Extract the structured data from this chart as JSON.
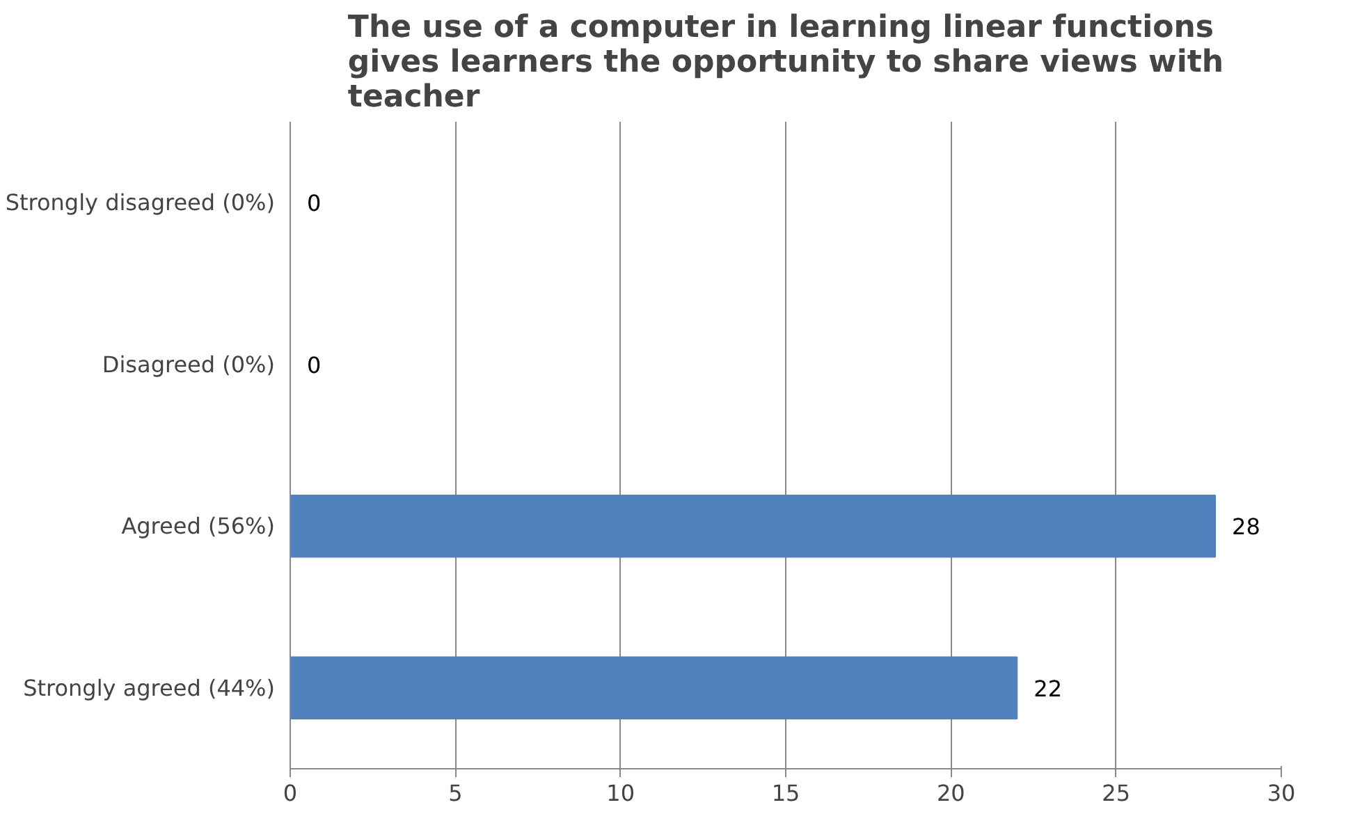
{
  "chart_data": {
    "type": "bar",
    "orientation": "horizontal",
    "title": "The use of a computer in learning linear functions gives learners the opportunity to share views with teacher",
    "categories": [
      "Strongly disagreed (0%)",
      "Disagreed (0%)",
      "Agreed (56%)",
      "Strongly agreed (44%)"
    ],
    "values": [
      0,
      0,
      28,
      22
    ],
    "color": "#4f81bd",
    "xlim": [
      0,
      30
    ],
    "xticks": [
      0,
      5,
      10,
      15,
      20,
      25,
      30
    ],
    "grid": "x",
    "data_labels": true
  }
}
